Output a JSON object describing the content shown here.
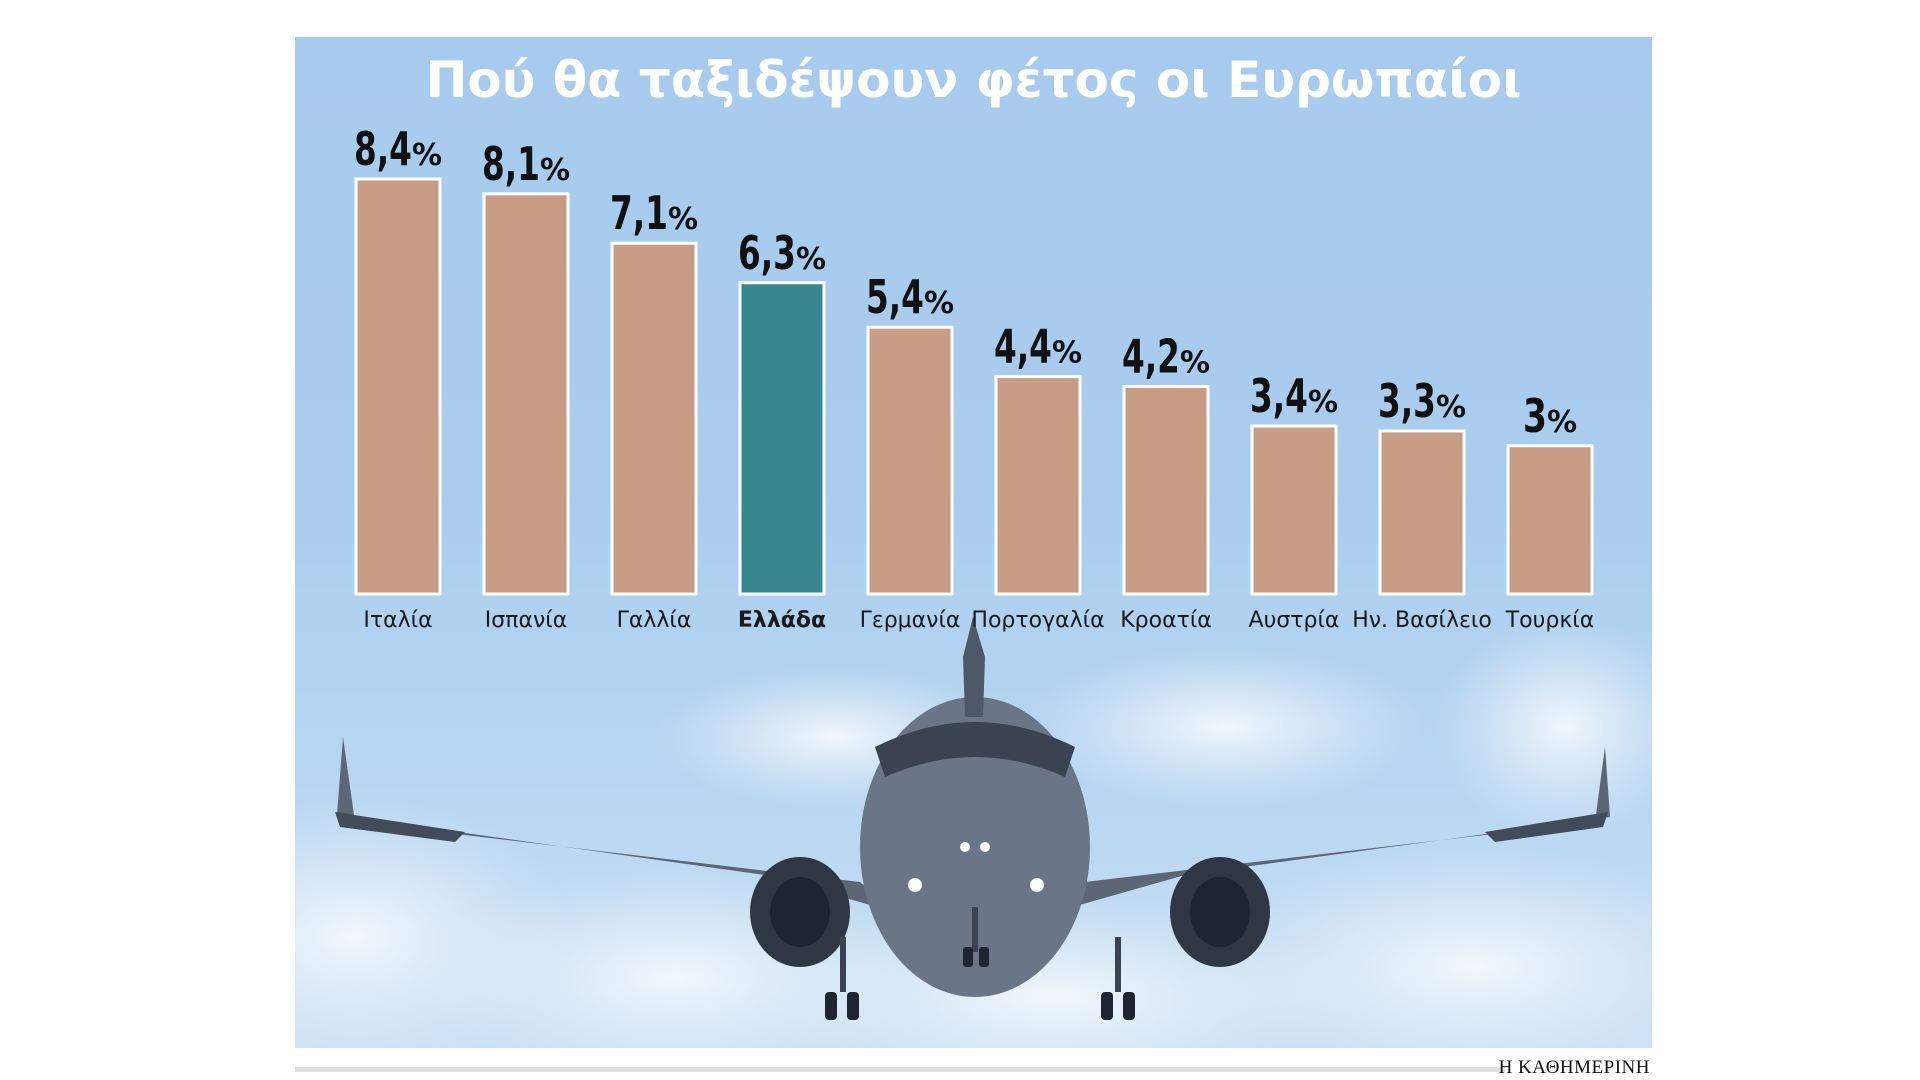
{
  "chart_data": {
    "type": "bar",
    "title": "Πού θα ταξιδέψουν φέτος οι Ευρωπαίοι",
    "categories": [
      "Ιταλία",
      "Ισπανία",
      "Γαλλία",
      "Ελλάδα",
      "Γερμανία",
      "Πορτογαλία",
      "Κροατία",
      "Αυστρία",
      "Ην. Βασίλειο",
      "Τουρκία"
    ],
    "values": [
      8.4,
      8.1,
      7.1,
      6.3,
      5.4,
      4.4,
      4.2,
      3.4,
      3.3,
      3
    ],
    "value_labels": [
      "8,4",
      "8,1",
      "7,1",
      "6,3",
      "5,4",
      "4,4",
      "4,2",
      "3,4",
      "3,3",
      "3"
    ],
    "unit": "%",
    "highlight": "Ελλάδα",
    "colors": {
      "bar": "#c99c86",
      "highlight": "#38868f",
      "bar_outline": "#ffffff"
    },
    "ylim": [
      0,
      8.4
    ],
    "grid": false,
    "legend": "none"
  },
  "credit": "Η ΚΑΘΗΜΕΡΙΝΗ"
}
